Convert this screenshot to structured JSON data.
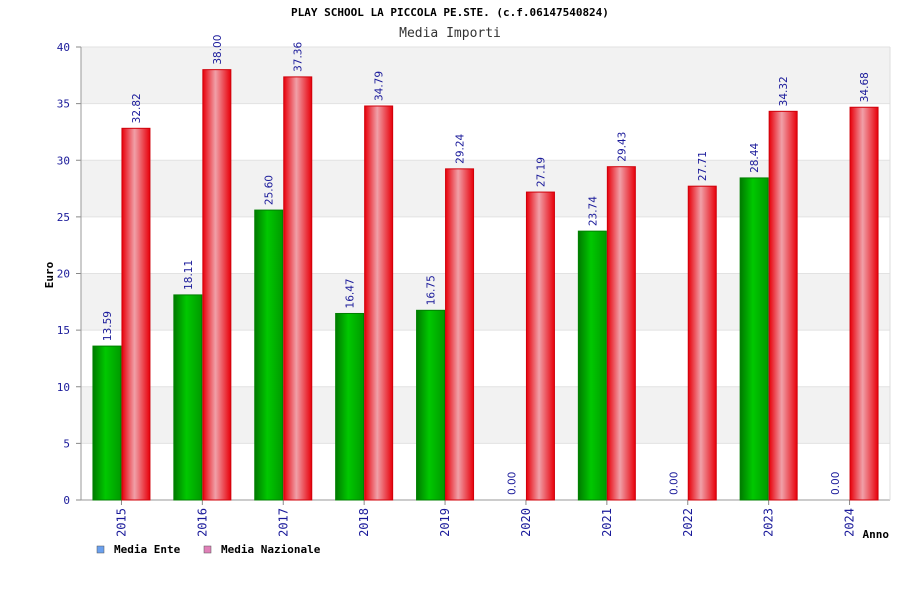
{
  "chart_data": {
    "type": "bar",
    "title": "PLAY SCHOOL LA PICCOLA PE.STE. (c.f.06147540824)",
    "subtitle": "Media Importi",
    "xlabel": "Anno",
    "ylabel": "Euro",
    "ylim": [
      0,
      40
    ],
    "yticks": [
      0,
      5,
      10,
      15,
      20,
      25,
      30,
      35,
      40
    ],
    "categories": [
      "2015",
      "2016",
      "2017",
      "2018",
      "2019",
      "2020",
      "2021",
      "2022",
      "2023",
      "2024"
    ],
    "series": [
      {
        "name": "Media Ente",
        "color": "#00b000",
        "legend_color": "#6aa0ee",
        "values": [
          13.59,
          18.11,
          25.6,
          16.47,
          16.75,
          0.0,
          23.74,
          0.0,
          28.44,
          0.0
        ],
        "labels": [
          "13.59",
          "18.11",
          "25.60",
          "16.47",
          "16.75",
          "0.00",
          "23.74",
          "0.00",
          "28.44",
          "0.00"
        ]
      },
      {
        "name": "Media Nazionale",
        "color": "#e8000a",
        "legend_color": "#e080b8",
        "values": [
          32.82,
          38.0,
          37.36,
          34.79,
          29.24,
          27.19,
          29.43,
          27.71,
          34.32,
          34.68
        ],
        "labels": [
          "32.82",
          "38.00",
          "37.36",
          "34.79",
          "29.24",
          "27.19",
          "29.43",
          "27.71",
          "34.32",
          "34.68"
        ]
      }
    ],
    "grid": true,
    "grid_bands": true,
    "legend_position": "bottom-left"
  }
}
